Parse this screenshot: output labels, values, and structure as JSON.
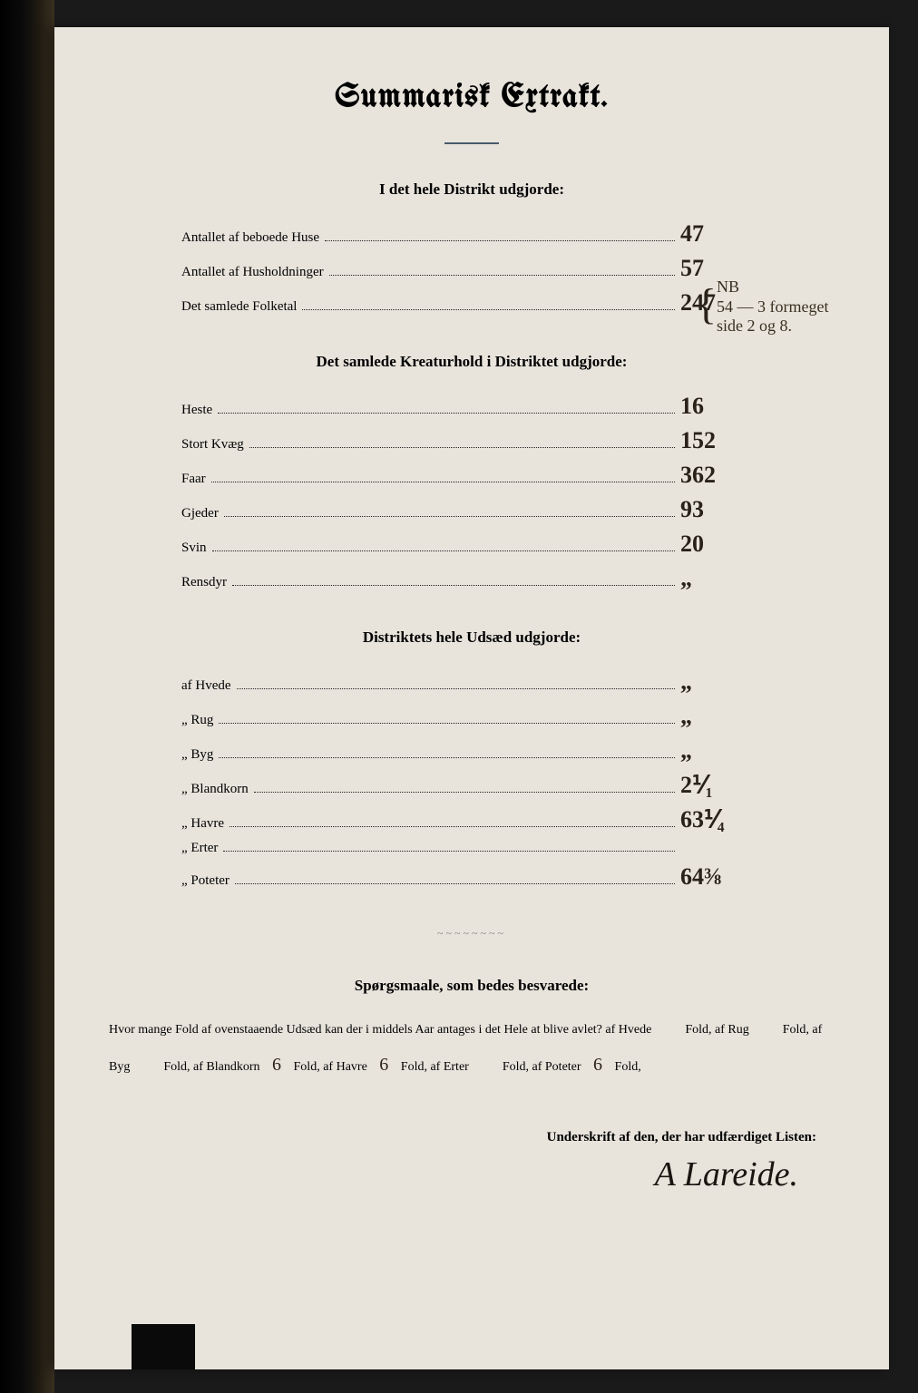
{
  "title": "Summarisk Extrakt.",
  "colors": {
    "page_bg": "#e8e4dc",
    "frame_bg": "#1a1a1a",
    "ink": "#2a2218",
    "divider": "#4a5a6a"
  },
  "section1": {
    "heading": "I det hele Distrikt udgjorde:",
    "rows": [
      {
        "label": "Antallet af beboede Huse",
        "value": "47"
      },
      {
        "label": "Antallet af Husholdninger",
        "value": "57"
      },
      {
        "label": "Det samlede Folketal",
        "value": "247"
      }
    ],
    "annotation_brace": "{",
    "annotation_text": "NB\n54 — 3 formeget\nside 2 og 8."
  },
  "section2": {
    "heading": "Det samlede Kreaturhold i Distriktet udgjorde:",
    "rows": [
      {
        "label": "Heste",
        "value": "16"
      },
      {
        "label": "Stort Kvæg",
        "value": "152"
      },
      {
        "label": "Faar",
        "value": "362"
      },
      {
        "label": "Gjeder",
        "value": "93"
      },
      {
        "label": "Svin",
        "value": "20"
      },
      {
        "label": "Rensdyr",
        "value": "„"
      }
    ]
  },
  "section3": {
    "heading": "Distriktets hele Udsæd udgjorde:",
    "rows": [
      {
        "label": "af Hvede",
        "value": "„"
      },
      {
        "label": "„ Rug",
        "value": "„"
      },
      {
        "label": "„ Byg",
        "value": "„"
      },
      {
        "label": "„ Blandkorn",
        "value": "2⅟₁"
      },
      {
        "label": "„ Havre",
        "value": "63⅟₄"
      },
      {
        "label": "„ Erter",
        "value": ""
      },
      {
        "label": "„ Poteter",
        "value": "64⅜"
      }
    ]
  },
  "questions": {
    "heading": "Spørgsmaale, som bedes besvarede:",
    "intro": "Hvor mange Fold af ovenstaaende Udsæd kan der i middels Aar antages i det Hele at blive avlet?",
    "folds": [
      {
        "label": "af Hvede",
        "value": ""
      },
      {
        "label": "af Rug",
        "value": ""
      },
      {
        "label": "af Byg",
        "value": ""
      },
      {
        "label": "af Blandkorn",
        "value": "6"
      },
      {
        "label": "af Havre",
        "value": "6"
      },
      {
        "label": "af Erter",
        "value": ""
      },
      {
        "label": "af Poteter",
        "value": "6"
      }
    ],
    "fold_word": "Fold,"
  },
  "signature": {
    "label": "Underskrift af den, der har udfærdiget Listen:",
    "name": "A Lareide."
  }
}
